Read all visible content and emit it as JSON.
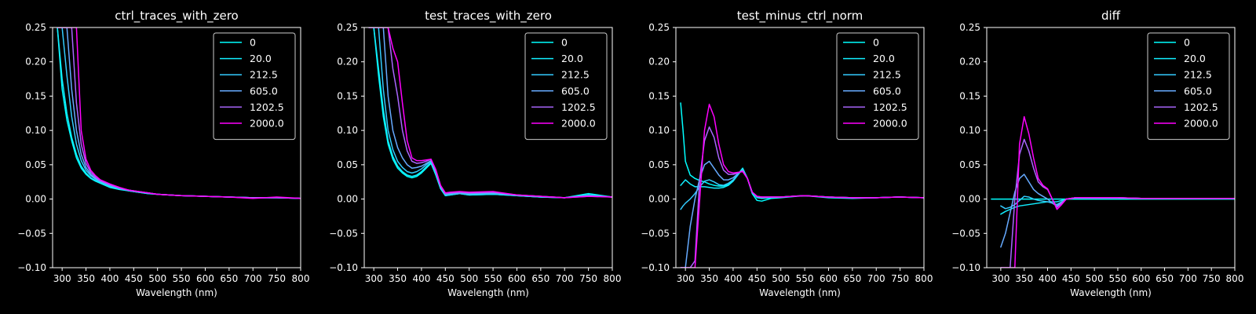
{
  "chart_data": [
    {
      "type": "line",
      "title": "ctrl_traces_with_zero",
      "xlabel": "Wavelength (nm)",
      "ylabel": "",
      "xlim": [
        280,
        800
      ],
      "ylim": [
        -0.1,
        0.25
      ],
      "xticks": [
        "300",
        "350",
        "400",
        "450",
        "500",
        "550",
        "600",
        "650",
        "700",
        "750",
        "800"
      ],
      "yticks": [
        "−0.10",
        "−0.05",
        "0.00",
        "0.05",
        "0.10",
        "0.15",
        "0.20",
        "0.25"
      ],
      "grid": false,
      "legend_position": "upper right",
      "x": [
        290,
        300,
        310,
        320,
        330,
        340,
        350,
        360,
        370,
        380,
        390,
        400,
        420,
        440,
        460,
        480,
        500,
        550,
        600,
        650,
        700,
        750,
        800
      ],
      "series": [
        {
          "name": "0",
          "color": "#00ffff",
          "values": [
            0.25,
            0.16,
            0.115,
            0.085,
            0.06,
            0.045,
            0.036,
            0.03,
            0.026,
            0.023,
            0.02,
            0.017,
            0.014,
            0.012,
            0.01,
            0.008,
            0.007,
            0.005,
            0.004,
            0.003,
            0.002,
            0.002,
            0.001
          ]
        },
        {
          "name": "20.0",
          "color": "#11eeff",
          "values": [
            0.25,
            0.175,
            0.125,
            0.09,
            0.065,
            0.048,
            0.038,
            0.031,
            0.027,
            0.024,
            0.021,
            0.018,
            0.015,
            0.012,
            0.01,
            0.008,
            0.007,
            0.005,
            0.004,
            0.003,
            0.002,
            0.002,
            0.001
          ]
        },
        {
          "name": "212.5",
          "color": "#33ccff",
          "values": [
            0.25,
            0.25,
            0.18,
            0.12,
            0.08,
            0.056,
            0.042,
            0.034,
            0.029,
            0.025,
            0.022,
            0.019,
            0.015,
            0.012,
            0.01,
            0.009,
            0.007,
            0.005,
            0.004,
            0.003,
            0.002,
            0.002,
            0.001
          ]
        },
        {
          "name": "605.0",
          "color": "#66aaff",
          "values": [
            0.25,
            0.25,
            0.25,
            0.16,
            0.1,
            0.065,
            0.046,
            0.036,
            0.03,
            0.026,
            0.023,
            0.02,
            0.016,
            0.013,
            0.011,
            0.009,
            0.007,
            0.005,
            0.004,
            0.003,
            0.002,
            0.002,
            0.001
          ]
        },
        {
          "name": "1202.5",
          "color": "#aa66ff",
          "values": [
            0.25,
            0.25,
            0.25,
            0.25,
            0.14,
            0.08,
            0.052,
            0.039,
            0.032,
            0.027,
            0.024,
            0.021,
            0.016,
            0.013,
            0.011,
            0.009,
            0.007,
            0.005,
            0.004,
            0.003,
            0.002,
            0.002,
            0.001
          ]
        },
        {
          "name": "2000.0",
          "color": "#ff00ff",
          "values": [
            0.25,
            0.25,
            0.25,
            0.25,
            0.25,
            0.1,
            0.058,
            0.042,
            0.034,
            0.028,
            0.025,
            0.022,
            0.017,
            0.013,
            0.011,
            0.009,
            0.007,
            0.005,
            0.004,
            0.003,
            0.001,
            0.003,
            0.001
          ]
        }
      ]
    },
    {
      "type": "line",
      "title": "test_traces_with_zero",
      "xlabel": "Wavelength (nm)",
      "ylabel": "",
      "xlim": [
        280,
        800
      ],
      "ylim": [
        -0.1,
        0.25
      ],
      "xticks": [
        "300",
        "350",
        "400",
        "450",
        "500",
        "550",
        "600",
        "650",
        "700",
        "750",
        "800"
      ],
      "yticks": [
        "−0.10",
        "−0.05",
        "0.00",
        "0.05",
        "0.10",
        "0.15",
        "0.20",
        "0.25"
      ],
      "grid": false,
      "legend_position": "upper right",
      "x": [
        290,
        300,
        310,
        320,
        330,
        340,
        350,
        360,
        370,
        380,
        390,
        400,
        410,
        420,
        430,
        440,
        450,
        460,
        480,
        500,
        550,
        600,
        650,
        700,
        750,
        800
      ],
      "series": [
        {
          "name": "0",
          "color": "#00ffff",
          "values": [
            0.25,
            0.25,
            0.18,
            0.12,
            0.08,
            0.058,
            0.045,
            0.038,
            0.033,
            0.031,
            0.033,
            0.038,
            0.045,
            0.052,
            0.035,
            0.015,
            0.005,
            0.006,
            0.008,
            0.006,
            0.007,
            0.005,
            0.003,
            0.002,
            0.008,
            0.003
          ]
        },
        {
          "name": "20.0",
          "color": "#11eeff",
          "values": [
            0.25,
            0.25,
            0.19,
            0.13,
            0.085,
            0.062,
            0.048,
            0.04,
            0.035,
            0.033,
            0.035,
            0.04,
            0.047,
            0.053,
            0.036,
            0.016,
            0.005,
            0.006,
            0.008,
            0.006,
            0.007,
            0.005,
            0.003,
            0.002,
            0.006,
            0.003
          ]
        },
        {
          "name": "212.5",
          "color": "#33ccff",
          "values": [
            0.25,
            0.25,
            0.25,
            0.16,
            0.1,
            0.072,
            0.055,
            0.046,
            0.04,
            0.038,
            0.04,
            0.044,
            0.05,
            0.055,
            0.038,
            0.017,
            0.006,
            0.007,
            0.008,
            0.007,
            0.008,
            0.005,
            0.003,
            0.002,
            0.006,
            0.003
          ]
        },
        {
          "name": "605.0",
          "color": "#66aaff",
          "values": [
            0.25,
            0.25,
            0.25,
            0.25,
            0.15,
            0.1,
            0.075,
            0.06,
            0.05,
            0.045,
            0.046,
            0.048,
            0.052,
            0.056,
            0.04,
            0.018,
            0.007,
            0.008,
            0.009,
            0.008,
            0.009,
            0.006,
            0.004,
            0.002,
            0.005,
            0.003
          ]
        },
        {
          "name": "1202.5",
          "color": "#aa66ff",
          "values": [
            0.25,
            0.25,
            0.25,
            0.25,
            0.25,
            0.19,
            0.15,
            0.1,
            0.07,
            0.055,
            0.052,
            0.053,
            0.055,
            0.058,
            0.042,
            0.019,
            0.008,
            0.009,
            0.01,
            0.009,
            0.01,
            0.006,
            0.004,
            0.002,
            0.004,
            0.003
          ]
        },
        {
          "name": "2000.0",
          "color": "#ff00ff",
          "values": [
            0.25,
            0.25,
            0.25,
            0.25,
            0.25,
            0.22,
            0.2,
            0.14,
            0.085,
            0.06,
            0.056,
            0.056,
            0.057,
            0.058,
            0.043,
            0.02,
            0.009,
            0.01,
            0.011,
            0.01,
            0.011,
            0.006,
            0.004,
            0.002,
            0.004,
            0.003
          ]
        }
      ]
    },
    {
      "type": "line",
      "title": "test_minus_ctrl_norm",
      "xlabel": "Wavelength (nm)",
      "ylabel": "",
      "xlim": [
        280,
        800
      ],
      "ylim": [
        -0.1,
        0.25
      ],
      "xticks": [
        "300",
        "350",
        "400",
        "450",
        "500",
        "550",
        "600",
        "650",
        "700",
        "750",
        "800"
      ],
      "yticks": [
        "−0.10",
        "−0.05",
        "0.00",
        "0.05",
        "0.10",
        "0.15",
        "0.20",
        "0.25"
      ],
      "grid": false,
      "legend_position": "upper right",
      "x": [
        290,
        295,
        300,
        310,
        320,
        330,
        340,
        350,
        360,
        370,
        380,
        390,
        400,
        410,
        420,
        430,
        440,
        450,
        460,
        480,
        500,
        550,
        600,
        650,
        700,
        750,
        800
      ],
      "series": [
        {
          "name": "0",
          "color": "#00ffff",
          "values": [
            0.14,
            0.1,
            0.055,
            0.035,
            0.03,
            0.027,
            0.025,
            0.022,
            0.02,
            0.019,
            0.019,
            0.021,
            0.027,
            0.036,
            0.045,
            0.03,
            0.008,
            -0.002,
            -0.003,
            0.001,
            0.002,
            0.005,
            0.002,
            0.001,
            0.002,
            0.003,
            0.002
          ]
        },
        {
          "name": "20.0",
          "color": "#11eeff",
          "values": [
            0.02,
            0.024,
            0.028,
            0.022,
            0.018,
            0.018,
            0.018,
            0.017,
            0.016,
            0.016,
            0.017,
            0.02,
            0.026,
            0.035,
            0.044,
            0.03,
            0.01,
            0.002,
            0.001,
            0.002,
            0.003,
            0.005,
            0.003,
            0.002,
            0.002,
            0.003,
            0.002
          ]
        },
        {
          "name": "212.5",
          "color": "#33ccff",
          "values": [
            -0.015,
            -0.01,
            -0.006,
            0.0,
            0.008,
            0.018,
            0.026,
            0.028,
            0.025,
            0.021,
            0.02,
            0.023,
            0.028,
            0.036,
            0.043,
            0.03,
            0.01,
            0.003,
            0.002,
            0.003,
            0.003,
            0.005,
            0.003,
            0.002,
            0.002,
            0.003,
            0.002
          ]
        },
        {
          "name": "605.0",
          "color": "#66aaff",
          "values": [
            -0.1,
            -0.1,
            -0.1,
            -0.04,
            0.0,
            0.03,
            0.05,
            0.055,
            0.045,
            0.035,
            0.028,
            0.028,
            0.031,
            0.037,
            0.042,
            0.03,
            0.01,
            0.004,
            0.003,
            0.003,
            0.003,
            0.005,
            0.003,
            0.002,
            0.002,
            0.003,
            0.002
          ]
        },
        {
          "name": "1202.5",
          "color": "#aa66ff",
          "values": [
            -0.1,
            -0.1,
            -0.1,
            -0.1,
            -0.09,
            0.03,
            0.085,
            0.105,
            0.09,
            0.06,
            0.042,
            0.036,
            0.036,
            0.038,
            0.041,
            0.03,
            0.01,
            0.004,
            0.003,
            0.003,
            0.003,
            0.005,
            0.003,
            0.002,
            0.002,
            0.003,
            0.002
          ]
        },
        {
          "name": "2000.0",
          "color": "#ff00ff",
          "values": [
            -0.1,
            -0.1,
            -0.1,
            -0.1,
            -0.1,
            0.0,
            0.1,
            0.138,
            0.12,
            0.08,
            0.05,
            0.04,
            0.038,
            0.039,
            0.04,
            0.03,
            0.01,
            0.004,
            0.003,
            0.003,
            0.003,
            0.005,
            0.003,
            0.002,
            0.002,
            0.003,
            0.002
          ]
        }
      ]
    },
    {
      "type": "line",
      "title": "diff",
      "xlabel": "Wavelength (nm)",
      "ylabel": "",
      "xlim": [
        270,
        800
      ],
      "ylim": [
        -0.1,
        0.25
      ],
      "xticks": [
        "300",
        "350",
        "400",
        "450",
        "500",
        "550",
        "600",
        "650",
        "700",
        "750",
        "800"
      ],
      "yticks": [
        "−0.10",
        "−0.05",
        "0.00",
        "0.05",
        "0.10",
        "0.15",
        "0.20",
        "0.25"
      ],
      "grid": false,
      "legend_position": "upper right",
      "x": [
        280,
        290,
        300,
        310,
        320,
        330,
        340,
        350,
        360,
        370,
        380,
        390,
        400,
        410,
        420,
        430,
        440,
        450,
        460,
        480,
        500,
        550,
        600,
        650,
        700,
        750,
        800
      ],
      "series": [
        {
          "name": "0",
          "color": "#00ffff",
          "values": [
            0.0,
            0.0,
            0.0,
            0.0,
            0.0,
            0.0,
            0.0,
            0.0,
            0.0,
            0.0,
            0.0,
            0.0,
            0.0,
            0.0,
            0.0,
            0.0,
            0.0,
            0.0,
            0.0,
            0.0,
            0.0,
            0.0,
            0.0,
            0.0,
            0.0,
            0.0,
            0.0
          ]
        },
        {
          "name": "20.0",
          "color": "#11eeff",
          "values": [
            null,
            null,
            -0.022,
            -0.018,
            -0.015,
            -0.012,
            -0.01,
            -0.009,
            -0.008,
            -0.007,
            -0.006,
            -0.005,
            -0.004,
            -0.004,
            -0.004,
            -0.002,
            0.0,
            0.001,
            0.002,
            0.002,
            0.002,
            0.002,
            0.001,
            0.001,
            0.001,
            0.001,
            0.001
          ]
        },
        {
          "name": "212.5",
          "color": "#33ccff",
          "values": [
            null,
            null,
            -0.01,
            -0.014,
            -0.012,
            -0.008,
            -0.002,
            0.004,
            0.003,
            0.0,
            -0.002,
            -0.003,
            -0.004,
            -0.006,
            -0.008,
            -0.004,
            0.0,
            0.001,
            0.002,
            0.002,
            0.002,
            0.002,
            0.001,
            0.001,
            0.001,
            0.001,
            0.001
          ]
        },
        {
          "name": "605.0",
          "color": "#66aaff",
          "values": [
            null,
            null,
            -0.07,
            -0.05,
            -0.02,
            0.01,
            0.03,
            0.036,
            0.025,
            0.014,
            0.008,
            0.004,
            0.0,
            -0.006,
            -0.01,
            -0.005,
            0.0,
            0.001,
            0.002,
            0.002,
            0.002,
            0.002,
            0.001,
            0.001,
            0.001,
            0.001,
            0.001
          ]
        },
        {
          "name": "1202.5",
          "color": "#aa66ff",
          "values": [
            null,
            null,
            -0.1,
            -0.1,
            -0.1,
            0.0,
            0.065,
            0.087,
            0.07,
            0.045,
            0.025,
            0.018,
            0.014,
            0.0,
            -0.012,
            -0.006,
            0.0,
            0.001,
            0.002,
            0.002,
            0.002,
            0.002,
            0.001,
            0.001,
            0.001,
            0.001,
            0.001
          ]
        },
        {
          "name": "2000.0",
          "color": "#ff00ff",
          "values": [
            null,
            null,
            -0.1,
            -0.1,
            -0.1,
            -0.1,
            0.08,
            0.12,
            0.095,
            0.06,
            0.03,
            0.02,
            0.015,
            0.0,
            -0.015,
            -0.008,
            0.0,
            0.001,
            0.002,
            0.002,
            0.002,
            0.002,
            0.001,
            0.001,
            0.001,
            0.001,
            0.001
          ]
        }
      ]
    }
  ]
}
